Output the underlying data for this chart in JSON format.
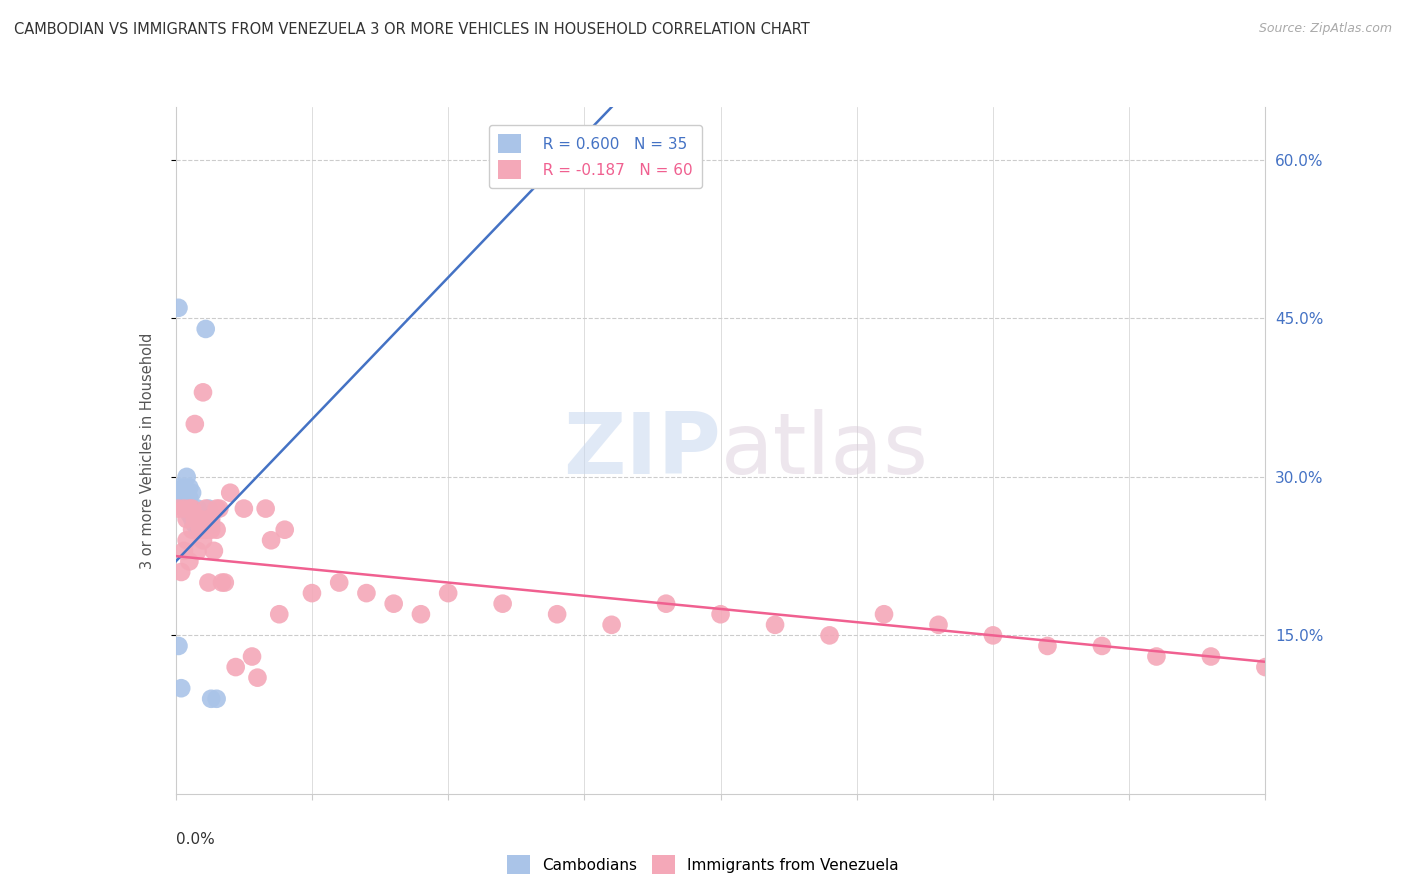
{
  "title": "CAMBODIAN VS IMMIGRANTS FROM VENEZUELA 3 OR MORE VEHICLES IN HOUSEHOLD CORRELATION CHART",
  "source": "Source: ZipAtlas.com",
  "ylabel": "3 or more Vehicles in Household",
  "right_yticks": [
    "60.0%",
    "45.0%",
    "30.0%",
    "15.0%"
  ],
  "right_ytick_vals": [
    0.6,
    0.45,
    0.3,
    0.15
  ],
  "legend_cam": "R = 0.600   N = 35",
  "legend_ven": "R = -0.187   N = 60",
  "cambodian_color": "#aac4e8",
  "venezuela_color": "#f4a8b8",
  "trend_cam_color": "#4472c4",
  "trend_ven_color": "#f06090",
  "background_color": "#ffffff",
  "watermark_text": "ZIPatlas",
  "xlim": [
    0.0,
    0.4
  ],
  "ylim": [
    0.0,
    0.65
  ],
  "cam_trend_x": [
    0.0,
    0.16
  ],
  "cam_trend_y": [
    0.22,
    0.65
  ],
  "ven_trend_x": [
    0.0,
    0.4
  ],
  "ven_trend_y": [
    0.225,
    0.125
  ],
  "cambodian_x": [
    0.001,
    0.001,
    0.002,
    0.003,
    0.003,
    0.004,
    0.004,
    0.005,
    0.005,
    0.005,
    0.006,
    0.006,
    0.007,
    0.007,
    0.008,
    0.008,
    0.009,
    0.01,
    0.011,
    0.012,
    0.013,
    0.015,
    0.001,
    0.002,
    0.003,
    0.004,
    0.005,
    0.006,
    0.007,
    0.008,
    0.009,
    0.01,
    0.011,
    0.012,
    0.013
  ],
  "cambodian_y": [
    0.46,
    0.14,
    0.1,
    0.29,
    0.285,
    0.3,
    0.285,
    0.29,
    0.28,
    0.27,
    0.285,
    0.27,
    0.265,
    0.26,
    0.27,
    0.25,
    0.26,
    0.26,
    0.44,
    0.27,
    0.09,
    0.09,
    0.29,
    0.28,
    0.28,
    0.27,
    0.265,
    0.26,
    0.255,
    0.255,
    0.255,
    0.255,
    0.255,
    0.255,
    0.255
  ],
  "venezuela_x": [
    0.001,
    0.002,
    0.003,
    0.003,
    0.004,
    0.004,
    0.005,
    0.005,
    0.006,
    0.006,
    0.007,
    0.007,
    0.008,
    0.008,
    0.009,
    0.009,
    0.01,
    0.01,
    0.011,
    0.011,
    0.012,
    0.012,
    0.013,
    0.013,
    0.014,
    0.015,
    0.015,
    0.016,
    0.017,
    0.018,
    0.02,
    0.022,
    0.025,
    0.028,
    0.03,
    0.033,
    0.035,
    0.038,
    0.04,
    0.05,
    0.06,
    0.07,
    0.08,
    0.09,
    0.1,
    0.12,
    0.14,
    0.16,
    0.18,
    0.2,
    0.22,
    0.24,
    0.26,
    0.28,
    0.3,
    0.32,
    0.34,
    0.36,
    0.38,
    0.4
  ],
  "venezuela_y": [
    0.27,
    0.21,
    0.27,
    0.23,
    0.26,
    0.24,
    0.27,
    0.22,
    0.27,
    0.25,
    0.35,
    0.26,
    0.26,
    0.23,
    0.26,
    0.25,
    0.38,
    0.24,
    0.27,
    0.25,
    0.26,
    0.2,
    0.26,
    0.25,
    0.23,
    0.27,
    0.25,
    0.27,
    0.2,
    0.2,
    0.285,
    0.12,
    0.27,
    0.13,
    0.11,
    0.27,
    0.24,
    0.17,
    0.25,
    0.19,
    0.2,
    0.19,
    0.18,
    0.17,
    0.19,
    0.18,
    0.17,
    0.16,
    0.18,
    0.17,
    0.16,
    0.15,
    0.17,
    0.16,
    0.15,
    0.14,
    0.14,
    0.13,
    0.13,
    0.12
  ]
}
